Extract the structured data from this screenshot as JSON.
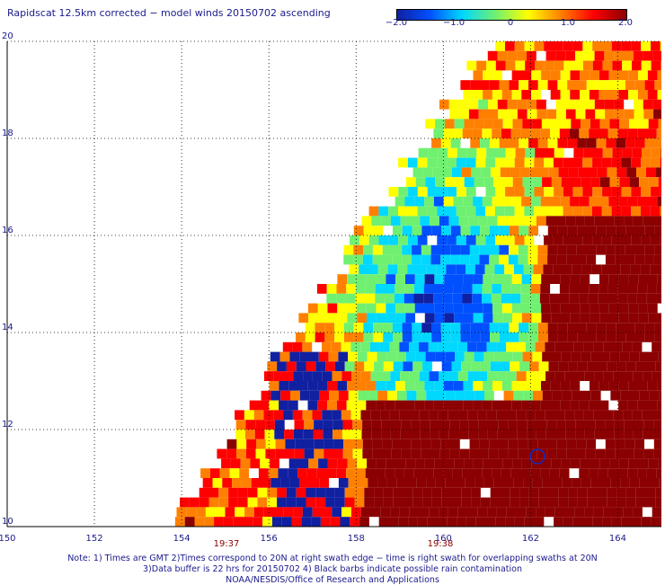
{
  "title": "Rapidscat 12.5km corrected − model winds 20150702 ascending",
  "colorbar": {
    "ticks": [
      "−2.0",
      "−1.0",
      "0",
      "1.0",
      "2.0"
    ],
    "range": [
      -2.0,
      2.0
    ],
    "colors": [
      "#1020a0",
      "#0050ff",
      "#00d8ff",
      "#70f070",
      "#ffff00",
      "#ff8000",
      "#ff0000",
      "#8b0000"
    ]
  },
  "map": {
    "lon_labels": [
      "150",
      "152",
      "154",
      "156",
      "158",
      "160",
      "162",
      "164"
    ],
    "lat_labels": [
      "10",
      "12",
      "14",
      "16",
      "18",
      "20"
    ],
    "lon_range": [
      150,
      165
    ],
    "lat_range": [
      10,
      20
    ],
    "grid": "dotted",
    "rain_marker": "blue-circle"
  },
  "times": [
    {
      "label": "19:37",
      "lon": 155.0
    },
    {
      "label": "19:38",
      "lon": 160.3
    }
  ],
  "notes": {
    "line1": "Note: 1) Times are GMT 2)Times correspond to 20N at right swath edge − time is right swath for overlapping swaths at 20N",
    "line2": "3)Data buffer is 22 hrs for 20150702 4) Black barbs indicate possible rain contamination",
    "line3": "NOAA/NESDIS/Office of Research and Applications"
  }
}
